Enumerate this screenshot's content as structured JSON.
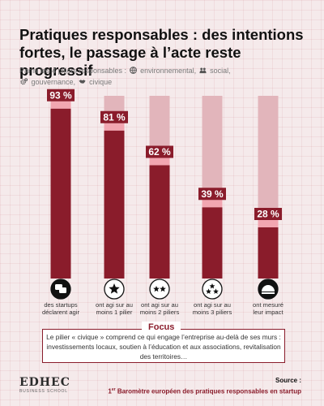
{
  "title": "Pratiques responsables : des intentions fortes, le passage à l’acte reste progressif",
  "subtitle": {
    "prefix": "Parmi les 4 piliers responsables :",
    "pillars": [
      "environnemental,",
      "social,",
      "gouvernance,",
      "civique"
    ]
  },
  "colors": {
    "bar": "#8a1c2b",
    "bar_track": "#e2b5bb",
    "label_bg": "#8a1c2b",
    "label_band": "#f2a6b1"
  },
  "chart_data": {
    "type": "bar",
    "ylim": [
      0,
      100
    ],
    "categories": [
      [
        "des startups",
        "déclarent agir"
      ],
      [
        "ont agi sur au",
        "moins 1 pilier"
      ],
      [
        "ont agi sur au",
        "moins 2 piliers"
      ],
      [
        "ont agi sur au",
        "moins 3 piliers"
      ],
      [
        "ont mesuré",
        "leur impact"
      ]
    ],
    "values": [
      93,
      81,
      62,
      39,
      28
    ],
    "value_labels": [
      "93 %",
      "81 %",
      "62 %",
      "39 %",
      "28 %"
    ],
    "icons": [
      "chat-icon",
      "one-star-icon",
      "two-stars-icon",
      "three-stars-icon",
      "gauge-icon"
    ]
  },
  "focus": {
    "label": "Focus",
    "text": "Le pilier « civique » comprend ce qui engage l’entreprise au-delà de ses murs : investissements locaux, soutien à l’éducation et aux associations, revitalisation des territoires…"
  },
  "logo": {
    "name": "EDHEC",
    "sub": "BUSINESS SCHOOL"
  },
  "source": {
    "label": "Source :",
    "ordinal": "1",
    "ordinal_sup": "er",
    "text": " Baromètre européen des pratiques responsables en startup"
  }
}
